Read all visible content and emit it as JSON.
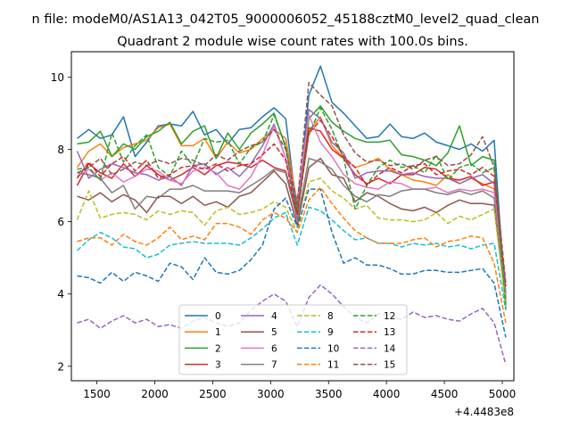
{
  "chart_data": {
    "type": "line",
    "suptitle": "n file: modeM0/AS1A13_042T05_9000006052_45188cztM0_level2_quad_clean",
    "title": "Quadrant 2 module wise count rates with 100.0s bins.",
    "xlabel": "",
    "ylabel": "",
    "x_offset_label": "+4.4483e8",
    "xlim": [
      1280,
      5100
    ],
    "ylim": [
      1.6,
      10.7
    ],
    "x_ticks": [
      1500,
      2000,
      2500,
      3000,
      3500,
      4000,
      4500,
      5000
    ],
    "y_ticks": [
      2,
      4,
      6,
      8,
      10
    ],
    "grid": false,
    "legend_placement": "lower-center",
    "x": [
      1330,
      1430,
      1530,
      1630,
      1730,
      1830,
      1930,
      2030,
      2130,
      2230,
      2330,
      2430,
      2530,
      2630,
      2730,
      2830,
      2930,
      3030,
      3130,
      3230,
      3330,
      3430,
      3530,
      3630,
      3730,
      3830,
      3930,
      4030,
      4130,
      4230,
      4330,
      4430,
      4530,
      4630,
      4730,
      4830,
      4930,
      5030
    ],
    "series": [
      {
        "name": "0",
        "color": "#1f77b4",
        "dash": false,
        "values": [
          8.3,
          8.55,
          8.3,
          8.4,
          8.9,
          7.8,
          8.2,
          8.65,
          8.7,
          8.65,
          9.05,
          8.4,
          8.55,
          8.15,
          8.55,
          8.6,
          8.9,
          9.15,
          8.85,
          6.2,
          9.5,
          10.3,
          9.3,
          9.0,
          8.65,
          8.3,
          8.35,
          8.7,
          8.35,
          8.3,
          8.45,
          8.2,
          8.1,
          8.0,
          8.15,
          7.95,
          8.25,
          3.6
        ]
      },
      {
        "name": "1",
        "color": "#ff7f0e",
        "dash": false,
        "values": [
          7.5,
          7.95,
          8.15,
          7.8,
          8.05,
          8.15,
          8.25,
          8.6,
          8.7,
          8.1,
          8.1,
          8.3,
          7.75,
          8.2,
          7.9,
          8.0,
          8.3,
          8.55,
          8.3,
          6.5,
          8.5,
          8.9,
          8.1,
          7.75,
          7.5,
          7.6,
          7.75,
          7.45,
          7.3,
          7.15,
          7.1,
          7.0,
          7.3,
          7.05,
          7.2,
          7.05,
          6.9,
          3.9
        ]
      },
      {
        "name": "2",
        "color": "#2ca02c",
        "dash": false,
        "values": [
          8.15,
          8.2,
          8.5,
          7.8,
          8.15,
          8.0,
          8.35,
          8.5,
          8.75,
          8.15,
          8.5,
          8.65,
          7.75,
          8.45,
          8.0,
          8.45,
          8.7,
          9.0,
          8.05,
          6.4,
          8.85,
          9.2,
          8.75,
          8.5,
          8.3,
          8.2,
          8.2,
          8.25,
          7.85,
          7.8,
          7.7,
          7.55,
          7.9,
          8.65,
          7.55,
          7.8,
          7.7,
          3.75
        ]
      },
      {
        "name": "3",
        "color": "#d62728",
        "dash": false,
        "values": [
          7.0,
          7.6,
          7.35,
          7.2,
          7.6,
          7.25,
          7.55,
          7.3,
          7.15,
          7.3,
          7.5,
          7.3,
          7.55,
          7.65,
          7.6,
          7.5,
          7.7,
          7.5,
          7.4,
          6.2,
          8.6,
          8.5,
          8.0,
          7.75,
          7.3,
          7.05,
          7.2,
          7.05,
          7.3,
          7.3,
          7.5,
          7.45,
          7.2,
          7.15,
          7.25,
          7.0,
          7.1,
          4.0
        ]
      },
      {
        "name": "4",
        "color": "#9467bd",
        "dash": false,
        "values": [
          7.95,
          7.2,
          7.45,
          7.6,
          7.5,
          7.35,
          7.3,
          7.15,
          7.25,
          7.0,
          7.55,
          7.6,
          7.3,
          7.5,
          7.25,
          7.6,
          8.1,
          8.7,
          7.75,
          6.3,
          9.1,
          8.85,
          8.2,
          7.9,
          7.2,
          7.35,
          7.4,
          7.4,
          7.3,
          7.35,
          7.25,
          7.2,
          7.2,
          7.05,
          7.2,
          7.3,
          7.05,
          4.05
        ]
      },
      {
        "name": "5",
        "color": "#8c564b",
        "dash": false,
        "values": [
          6.7,
          6.6,
          6.8,
          6.55,
          6.75,
          6.6,
          6.25,
          6.7,
          6.7,
          6.5,
          6.7,
          6.45,
          6.55,
          6.4,
          6.7,
          6.8,
          7.1,
          7.4,
          7.05,
          5.9,
          7.5,
          7.75,
          7.3,
          7.2,
          6.55,
          6.8,
          6.7,
          6.5,
          6.35,
          6.3,
          6.4,
          6.25,
          6.45,
          6.6,
          6.5,
          6.5,
          6.45,
          3.8
        ]
      },
      {
        "name": "6",
        "color": "#e377c2",
        "dash": false,
        "values": [
          7.25,
          7.45,
          7.15,
          7.35,
          7.1,
          7.25,
          7.45,
          7.4,
          7.15,
          7.05,
          7.4,
          7.5,
          7.35,
          7.0,
          6.9,
          7.25,
          7.85,
          8.65,
          7.75,
          6.6,
          8.95,
          8.2,
          7.8,
          7.3,
          7.05,
          6.95,
          6.9,
          7.1,
          7.05,
          6.9,
          6.9,
          6.95,
          6.8,
          6.9,
          6.85,
          6.9,
          6.8,
          3.95
        ]
      },
      {
        "name": "7",
        "color": "#7f7f7f",
        "dash": false,
        "values": [
          7.35,
          7.3,
          7.2,
          6.8,
          7.0,
          6.35,
          6.7,
          6.65,
          6.9,
          6.9,
          7.0,
          6.85,
          6.85,
          6.85,
          6.8,
          7.0,
          7.2,
          7.45,
          7.35,
          6.05,
          7.75,
          7.65,
          7.45,
          7.0,
          6.7,
          6.55,
          6.75,
          6.7,
          6.85,
          6.9,
          6.9,
          6.8,
          6.75,
          6.85,
          6.75,
          6.85,
          6.65,
          3.75
        ]
      },
      {
        "name": "8",
        "color": "#bcbd22",
        "dash": true,
        "values": [
          6.05,
          6.85,
          6.1,
          6.2,
          6.25,
          6.2,
          6.05,
          6.3,
          6.2,
          6.3,
          6.25,
          5.9,
          6.3,
          6.4,
          6.2,
          6.25,
          6.35,
          6.55,
          6.4,
          5.7,
          7.1,
          7.2,
          6.85,
          6.65,
          6.35,
          6.45,
          6.1,
          6.05,
          6.05,
          6.0,
          6.05,
          6.25,
          5.95,
          6.15,
          6.05,
          6.2,
          6.35,
          3.65
        ]
      },
      {
        "name": "9",
        "color": "#17becf",
        "dash": true,
        "values": [
          5.2,
          5.5,
          5.7,
          5.55,
          5.3,
          5.25,
          5.0,
          5.1,
          5.35,
          5.4,
          5.45,
          5.4,
          5.4,
          5.4,
          5.35,
          5.55,
          5.8,
          6.1,
          6.25,
          5.35,
          6.4,
          6.3,
          6.05,
          5.75,
          5.5,
          5.55,
          5.4,
          5.4,
          5.3,
          5.4,
          5.35,
          5.4,
          5.3,
          5.35,
          5.25,
          5.35,
          5.4,
          3.55
        ]
      },
      {
        "name": "10",
        "color": "#1f77b4",
        "dash": true,
        "values": [
          4.5,
          4.45,
          4.3,
          4.6,
          4.35,
          4.6,
          4.5,
          4.35,
          4.85,
          4.75,
          4.4,
          5.0,
          4.6,
          4.55,
          4.65,
          4.95,
          5.35,
          6.35,
          6.65,
          5.85,
          6.9,
          6.9,
          5.7,
          4.85,
          5.0,
          4.8,
          4.8,
          4.7,
          4.55,
          4.55,
          4.65,
          4.65,
          4.6,
          4.6,
          4.65,
          4.7,
          4.3,
          2.8
        ]
      },
      {
        "name": "11",
        "color": "#ff7f0e",
        "dash": true,
        "values": [
          5.45,
          5.55,
          5.55,
          5.35,
          5.65,
          5.45,
          5.35,
          5.55,
          5.85,
          5.5,
          5.6,
          5.5,
          5.95,
          5.95,
          5.85,
          5.65,
          6.05,
          6.25,
          6.1,
          5.7,
          6.6,
          6.95,
          6.5,
          6.1,
          5.75,
          5.55,
          5.4,
          5.4,
          5.4,
          5.5,
          5.55,
          5.3,
          5.45,
          5.5,
          5.6,
          5.55,
          4.85,
          3.2
        ]
      },
      {
        "name": "12",
        "color": "#2ca02c",
        "dash": true,
        "values": [
          7.45,
          7.5,
          7.15,
          8.45,
          7.65,
          8.1,
          8.4,
          7.5,
          7.25,
          7.95,
          7.55,
          8.3,
          8.2,
          8.25,
          7.6,
          8.05,
          8.2,
          8.95,
          8.1,
          6.3,
          8.4,
          9.15,
          8.55,
          7.75,
          6.35,
          7.0,
          7.5,
          7.7,
          7.5,
          7.55,
          7.35,
          7.85,
          7.15,
          7.5,
          7.6,
          7.35,
          7.5,
          3.7
        ]
      },
      {
        "name": "13",
        "color": "#d62728",
        "dash": true,
        "values": [
          7.2,
          7.65,
          7.25,
          7.6,
          7.8,
          7.4,
          7.7,
          7.2,
          7.3,
          7.5,
          7.55,
          7.45,
          7.6,
          7.4,
          7.55,
          7.6,
          7.85,
          8.15,
          7.7,
          6.2,
          8.45,
          8.8,
          8.35,
          7.8,
          7.5,
          7.0,
          7.3,
          7.5,
          7.35,
          7.55,
          7.6,
          7.3,
          7.4,
          7.45,
          7.3,
          7.5,
          7.25,
          4.2
        ]
      },
      {
        "name": "14",
        "color": "#9467bd",
        "dash": true,
        "values": [
          3.2,
          3.3,
          3.05,
          3.25,
          3.4,
          3.2,
          3.3,
          3.1,
          3.15,
          3.05,
          3.25,
          3.35,
          3.2,
          3.1,
          3.2,
          3.55,
          3.8,
          4.0,
          3.8,
          3.1,
          3.9,
          4.25,
          4.0,
          3.65,
          3.35,
          3.2,
          3.45,
          3.4,
          3.3,
          3.5,
          3.35,
          3.4,
          3.3,
          3.25,
          3.45,
          3.6,
          3.2,
          2.05
        ]
      },
      {
        "name": "15",
        "color": "#8c564b",
        "dash": true,
        "values": [
          7.35,
          7.5,
          7.75,
          7.3,
          7.45,
          7.65,
          7.55,
          7.7,
          7.6,
          7.75,
          7.7,
          7.55,
          7.85,
          7.7,
          7.95,
          8.1,
          8.2,
          8.55,
          8.0,
          6.5,
          9.85,
          9.5,
          9.2,
          8.4,
          7.9,
          7.65,
          7.7,
          7.55,
          7.6,
          7.45,
          7.7,
          7.8,
          7.55,
          7.6,
          7.85,
          8.35,
          7.5,
          4.3
        ]
      }
    ]
  }
}
